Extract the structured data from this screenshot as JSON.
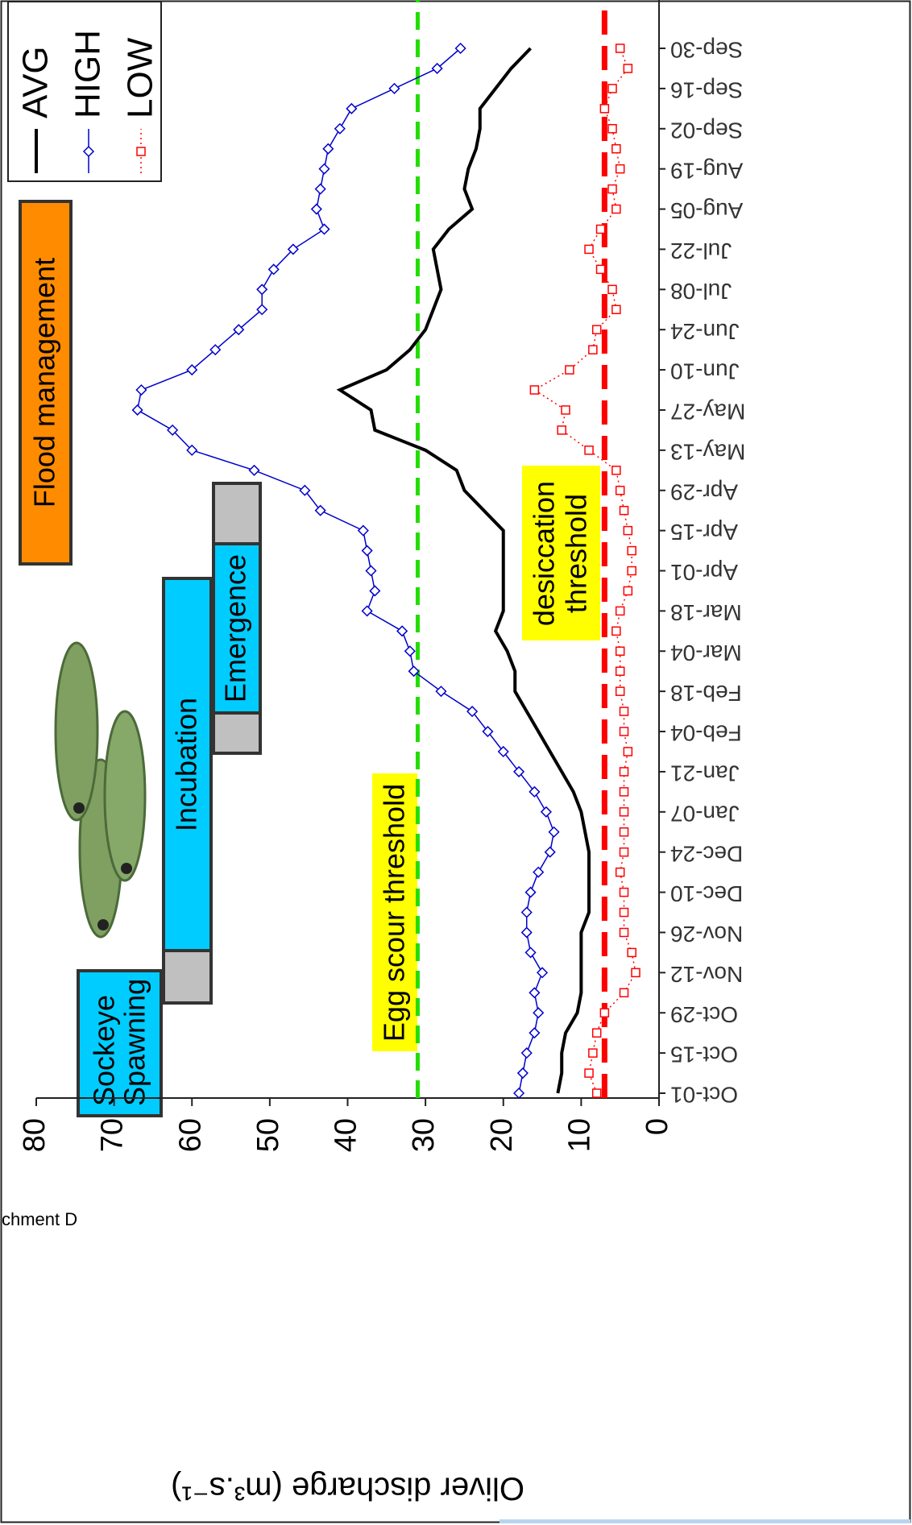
{
  "chart_data": {
    "type": "line",
    "y_label": "Oliver discharge (m³.s⁻¹)",
    "categories": [
      "Oct-01",
      null,
      "Oct-15",
      null,
      "Oct-29",
      null,
      "Nov-12",
      null,
      "Nov-26",
      null,
      "Dec-10",
      null,
      "Dec-24",
      null,
      "Jan-07",
      null,
      "Jan-21",
      null,
      "Feb-04",
      null,
      "Feb-18",
      null,
      "Mar-04",
      null,
      "Mar-18",
      null,
      "Apr-01",
      null,
      "Apr-15",
      null,
      "Apr-29",
      null,
      "May-13",
      null,
      "May-27",
      null,
      "Jun-10",
      null,
      "Jun-24",
      null,
      "Jul-08",
      null,
      "Jul-22",
      null,
      "Aug-05",
      null,
      "Aug-19",
      null,
      "Sep-02",
      null,
      "Sep-16",
      null,
      "Sep-30"
    ],
    "series": [
      {
        "name": "AVG",
        "color": "#000000",
        "marker": "none",
        "dash": "solid",
        "values": [
          13,
          12.5,
          12.5,
          12,
          10.5,
          10,
          10,
          10,
          10,
          9,
          9,
          9,
          9,
          9.5,
          10,
          11,
          12.5,
          14,
          15.5,
          17,
          18.5,
          18.5,
          19.5,
          21,
          20,
          20,
          20,
          20,
          20,
          22.5,
          25,
          26,
          30,
          36.5,
          37,
          41,
          35,
          32,
          30,
          29,
          28,
          28.5,
          29,
          27,
          24,
          25,
          24.5,
          23.5,
          23,
          23,
          21,
          19,
          16.5
        ]
      },
      {
        "name": "HIGH",
        "color": "#0000cc",
        "marker": "diamond",
        "dash": "solid",
        "values": [
          18,
          17.5,
          17,
          16,
          15.5,
          16,
          15,
          16.5,
          17,
          17,
          16.5,
          15.5,
          14,
          13.5,
          14.5,
          16,
          18,
          20,
          22,
          24,
          28,
          31.5,
          32,
          33,
          37.5,
          36.5,
          37,
          37.5,
          38,
          43.5,
          45.5,
          52,
          60,
          62.5,
          67,
          66.5,
          60,
          57,
          54,
          51,
          51,
          49.5,
          47,
          43,
          44,
          43.5,
          43,
          42.5,
          41,
          39.5,
          34,
          28.5,
          25.5
        ]
      },
      {
        "name": "LOW",
        "color": "#ff0000",
        "marker": "square",
        "dash": "dotted",
        "values": [
          8,
          9,
          8.5,
          8,
          7,
          4.5,
          3,
          3.5,
          4.5,
          4.5,
          4.5,
          5,
          4.5,
          4.5,
          4.5,
          4.5,
          4.5,
          4,
          4.5,
          4.5,
          5,
          5,
          5,
          5.5,
          5,
          4,
          3.5,
          3.5,
          4,
          4.5,
          5,
          5.5,
          9,
          12.5,
          12,
          16,
          11.5,
          8.5,
          8,
          5.5,
          6,
          7.5,
          9,
          7.5,
          5.5,
          6,
          5,
          5.5,
          6,
          7,
          6,
          4,
          5
        ]
      }
    ],
    "ylim": [
      0,
      80
    ],
    "yticks": [
      0,
      10,
      20,
      30,
      40,
      50,
      60,
      70,
      80
    ],
    "thresholds": [
      {
        "label": "Egg scour threshold",
        "value": 31,
        "color": "#22dd00"
      },
      {
        "label": [
          "desiccation",
          "threshold"
        ],
        "value": 7,
        "color": "#ff0000"
      }
    ],
    "annotations": [
      {
        "label": [
          "Sockeye",
          "Spawning"
        ]
      },
      {
        "label": "Incubation"
      },
      {
        "label": "Emergence"
      },
      {
        "label": "Flood management"
      }
    ],
    "legend": "top-right"
  },
  "footer": "chment D"
}
